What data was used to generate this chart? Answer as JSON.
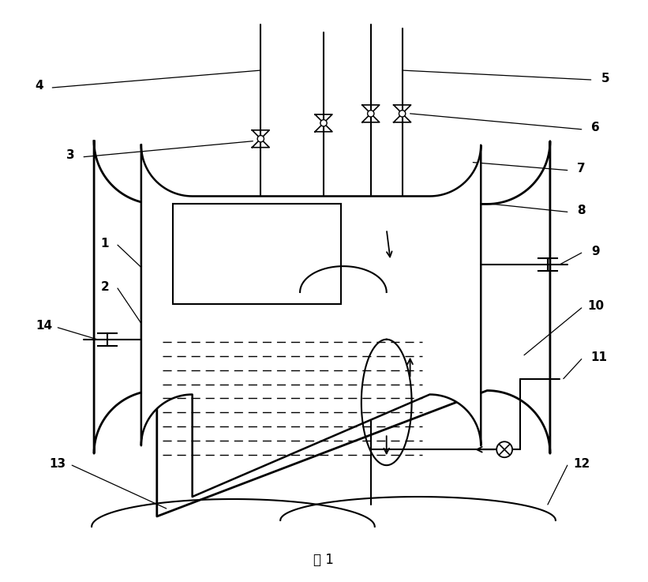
{
  "title": "图 1",
  "fig_width": 8.21,
  "fig_height": 7.37,
  "bg_color": "#ffffff",
  "line_color": "#000000"
}
